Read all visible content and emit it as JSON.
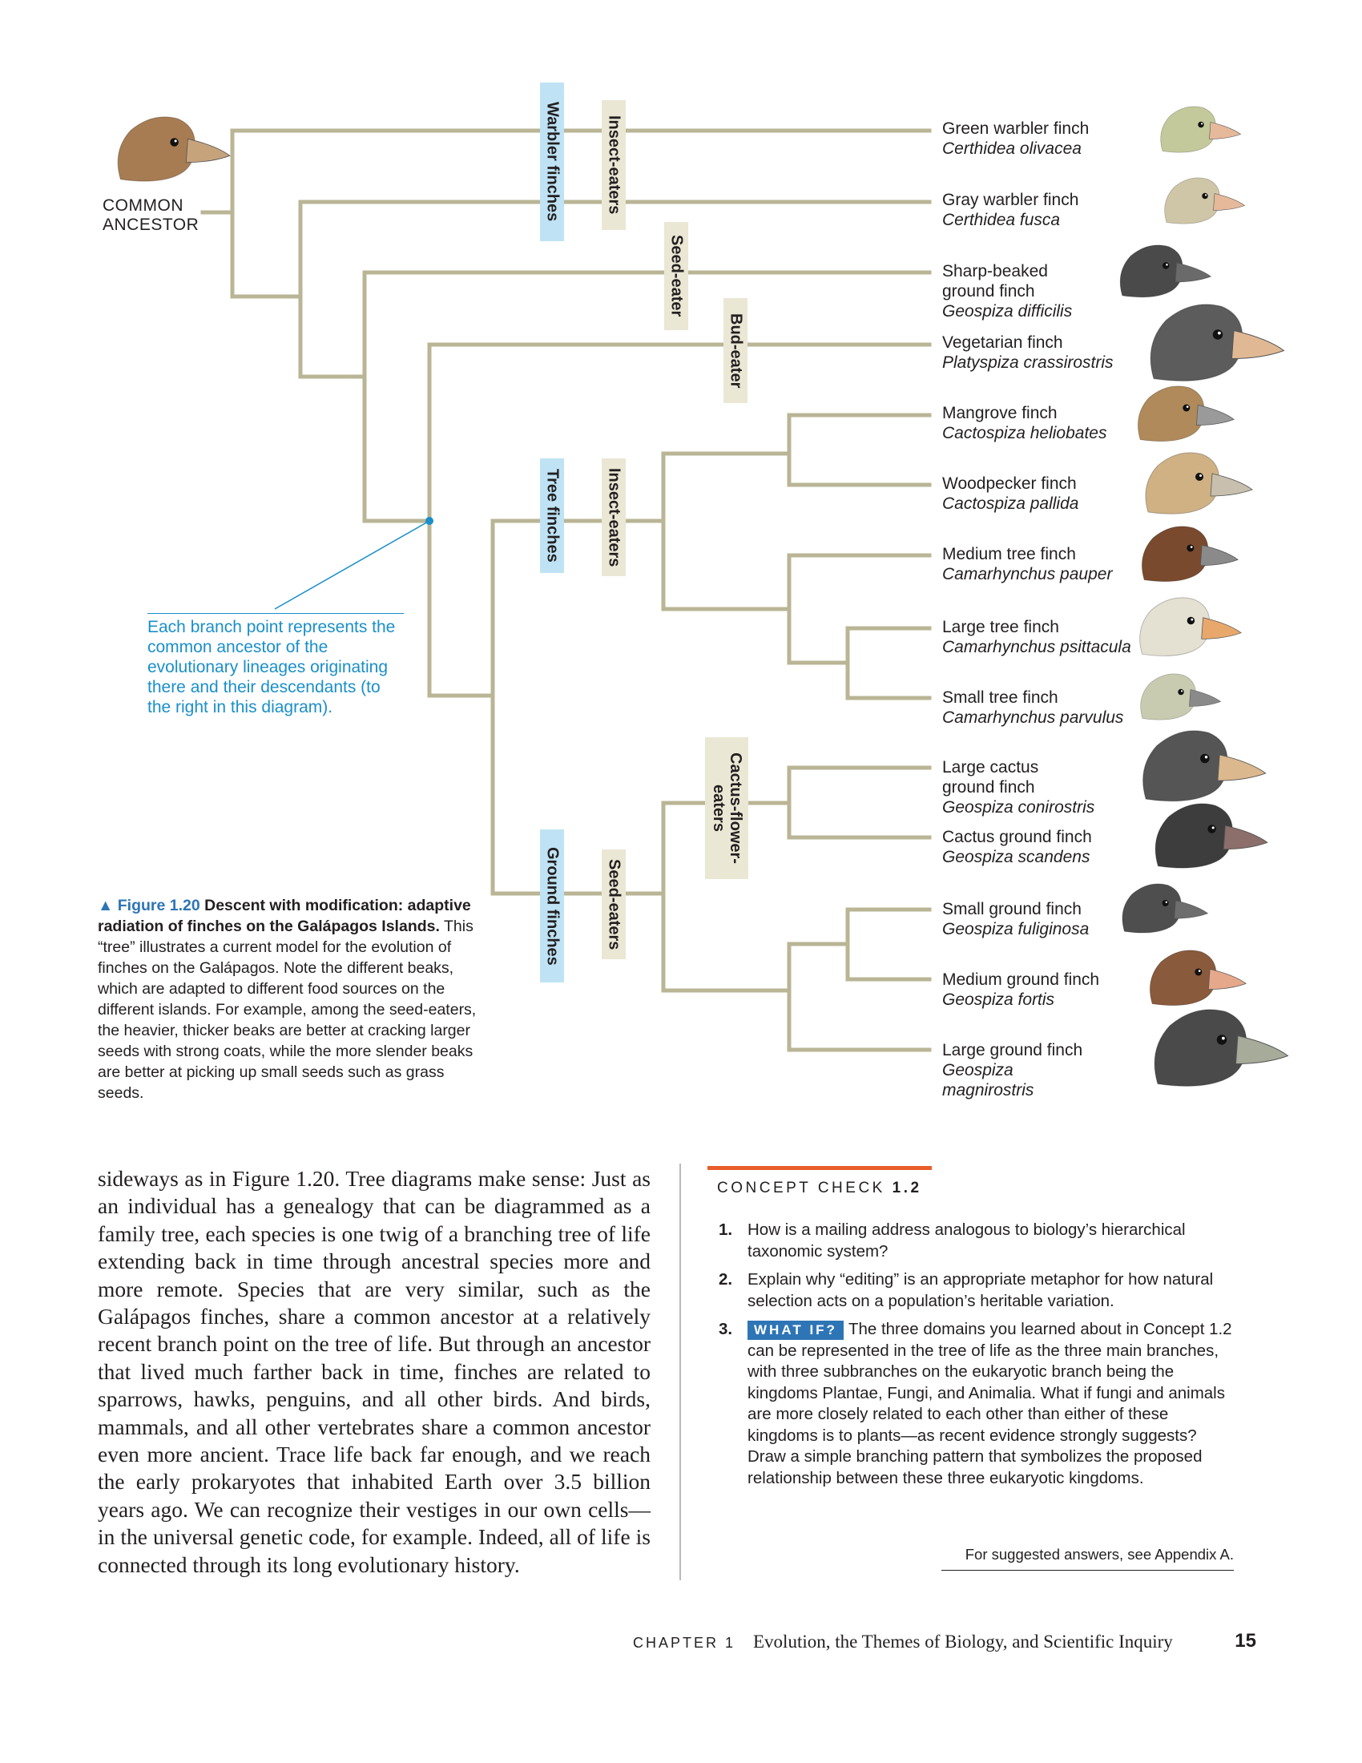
{
  "tree": {
    "ancestor_label": "COMMON\nANCESTOR",
    "species": [
      {
        "common": "Green warbler finch",
        "scientific": "Certhidea olivacea",
        "head_color": "#c3c99a",
        "beak_color": "#e6b99b"
      },
      {
        "common": "Gray warbler finch",
        "scientific": "Certhidea fusca",
        "head_color": "#cfc6a8",
        "beak_color": "#e6b99b"
      },
      {
        "common": "Sharp-beaked\nground finch",
        "scientific": "Geospiza difficilis",
        "head_color": "#4a4a4a",
        "beak_color": "#6a6a6a"
      },
      {
        "common": "Vegetarian finch",
        "scientific": "Platyspiza crassirostris",
        "head_color": "#5c5c5c",
        "beak_color": "#e0b994"
      },
      {
        "common": "Mangrove finch",
        "scientific": "Cactospiza heliobates",
        "head_color": "#b08a5a",
        "beak_color": "#9a9a9a"
      },
      {
        "common": "Woodpecker finch",
        "scientific": "Cactospiza pallida",
        "head_color": "#cfb184",
        "beak_color": "#c9bfae"
      },
      {
        "common": "Medium tree finch",
        "scientific": "Camarhynchus pauper",
        "head_color": "#7a4a2e",
        "beak_color": "#8a8a8a"
      },
      {
        "common": "Large tree finch",
        "scientific": "Camarhynchus psittacula",
        "head_color": "#e4e0d2",
        "beak_color": "#e9a86b"
      },
      {
        "common": "Small tree finch",
        "scientific": "Camarhynchus parvulus",
        "head_color": "#c8cbb0",
        "beak_color": "#8a8a8a"
      },
      {
        "common": "Large cactus\nground finch",
        "scientific": "Geospiza conirostris",
        "head_color": "#555555",
        "beak_color": "#dcb88e"
      },
      {
        "common": "Cactus ground finch",
        "scientific": "Geospiza scandens",
        "head_color": "#3d3d3d",
        "beak_color": "#8c6e6a"
      },
      {
        "common": "Small ground finch",
        "scientific": "Geospiza fuliginosa",
        "head_color": "#4e4e4e",
        "beak_color": "#6e6e6e"
      },
      {
        "common": "Medium ground finch",
        "scientific": "Geospiza fortis",
        "head_color": "#8a5a3c",
        "beak_color": "#e6a88a"
      },
      {
        "common": "Large ground finch",
        "scientific": "Geospiza\nmagnirostris",
        "head_color": "#4a4a4a",
        "beak_color": "#a6ab9a"
      }
    ],
    "ancestor_head_color": "#a87c52",
    "ancestor_beak_color": "#c7a37c",
    "group_labels": {
      "warbler": "Warbler finches",
      "tree": "Tree finches",
      "ground": "Ground finches",
      "insect1": "Insect-eaters",
      "seed1": "Seed-eater",
      "bud": "Bud-eater",
      "insect2": "Insect-eaters",
      "cactus": "Cactus-flower-\neaters",
      "seed2": "Seed-eaters"
    },
    "callout": "Each branch point represents the common ancestor of the evolutionary lineages originating there and their descendants (to the right in this diagram)."
  },
  "caption": {
    "marker": "▲",
    "figure_number": "Figure 1.20",
    "title": "Descent with modification: adaptive radiation of finches on the Galápagos Islands.",
    "text": "This “tree” illustrates a current model for the evolution of finches on the Galápagos. Note the different beaks, which are adapted to different food sources on the different islands. For example, among the seed-eaters, the heavier, thicker beaks are better at cracking larger seeds with strong coats, while the more slender beaks are better at picking up small seeds such as grass seeds."
  },
  "body_text": "sideways as in Figure 1.20. Tree diagrams make sense: Just as an individual has a genealogy that can be diagrammed as a family tree, each species is one twig of a branching tree of life extending back in time through ancestral species more and more remote. Species that are very similar, such as the Galápagos finches, share a common ancestor at a relatively recent branch point on the tree of life. But through an ancestor that lived much farther back in time, finches are related to sparrows, hawks, penguins, and all other birds. And birds, mammals, and all other vertebrates share a common ancestor even more ancient. Trace life back far enough, and we reach the early prokaryotes that inhabited Earth over 3.5 billion years ago. We can recognize their vestiges in our own cells—in the universal genetic code, for example. Indeed, all of life is connected through its long evolutionary history.",
  "concept_check": {
    "title": "CONCEPT CHECK",
    "number": "1.2",
    "items": [
      {
        "n": "1.",
        "text": "How is a mailing address analogous to biology’s hierarchical taxonomic system?"
      },
      {
        "n": "2.",
        "text": "Explain why “editing” is an appropriate metaphor for how natural selection acts on a population’s heritable variation."
      },
      {
        "n": "3.",
        "tag": "WHAT IF?",
        "text": "The three domains you learned about in Concept 1.2 can be represented in the tree of life as the three main branches, with three subbranches on the eukaryotic branch being the kingdoms Plantae, Fungi, and Animalia. What if fungi and animals are more closely related to each other than either of these kingdoms is to plants—as recent evidence strongly suggests? Draw a simple branching pattern that symbolizes the proposed relationship between these three eukaryotic kingdoms."
      }
    ],
    "answers_note": "For suggested answers, see Appendix A."
  },
  "footer": {
    "chapter": "CHAPTER 1",
    "title": "Evolution, the Themes of Biology, and Scientific Inquiry",
    "page": "15"
  }
}
